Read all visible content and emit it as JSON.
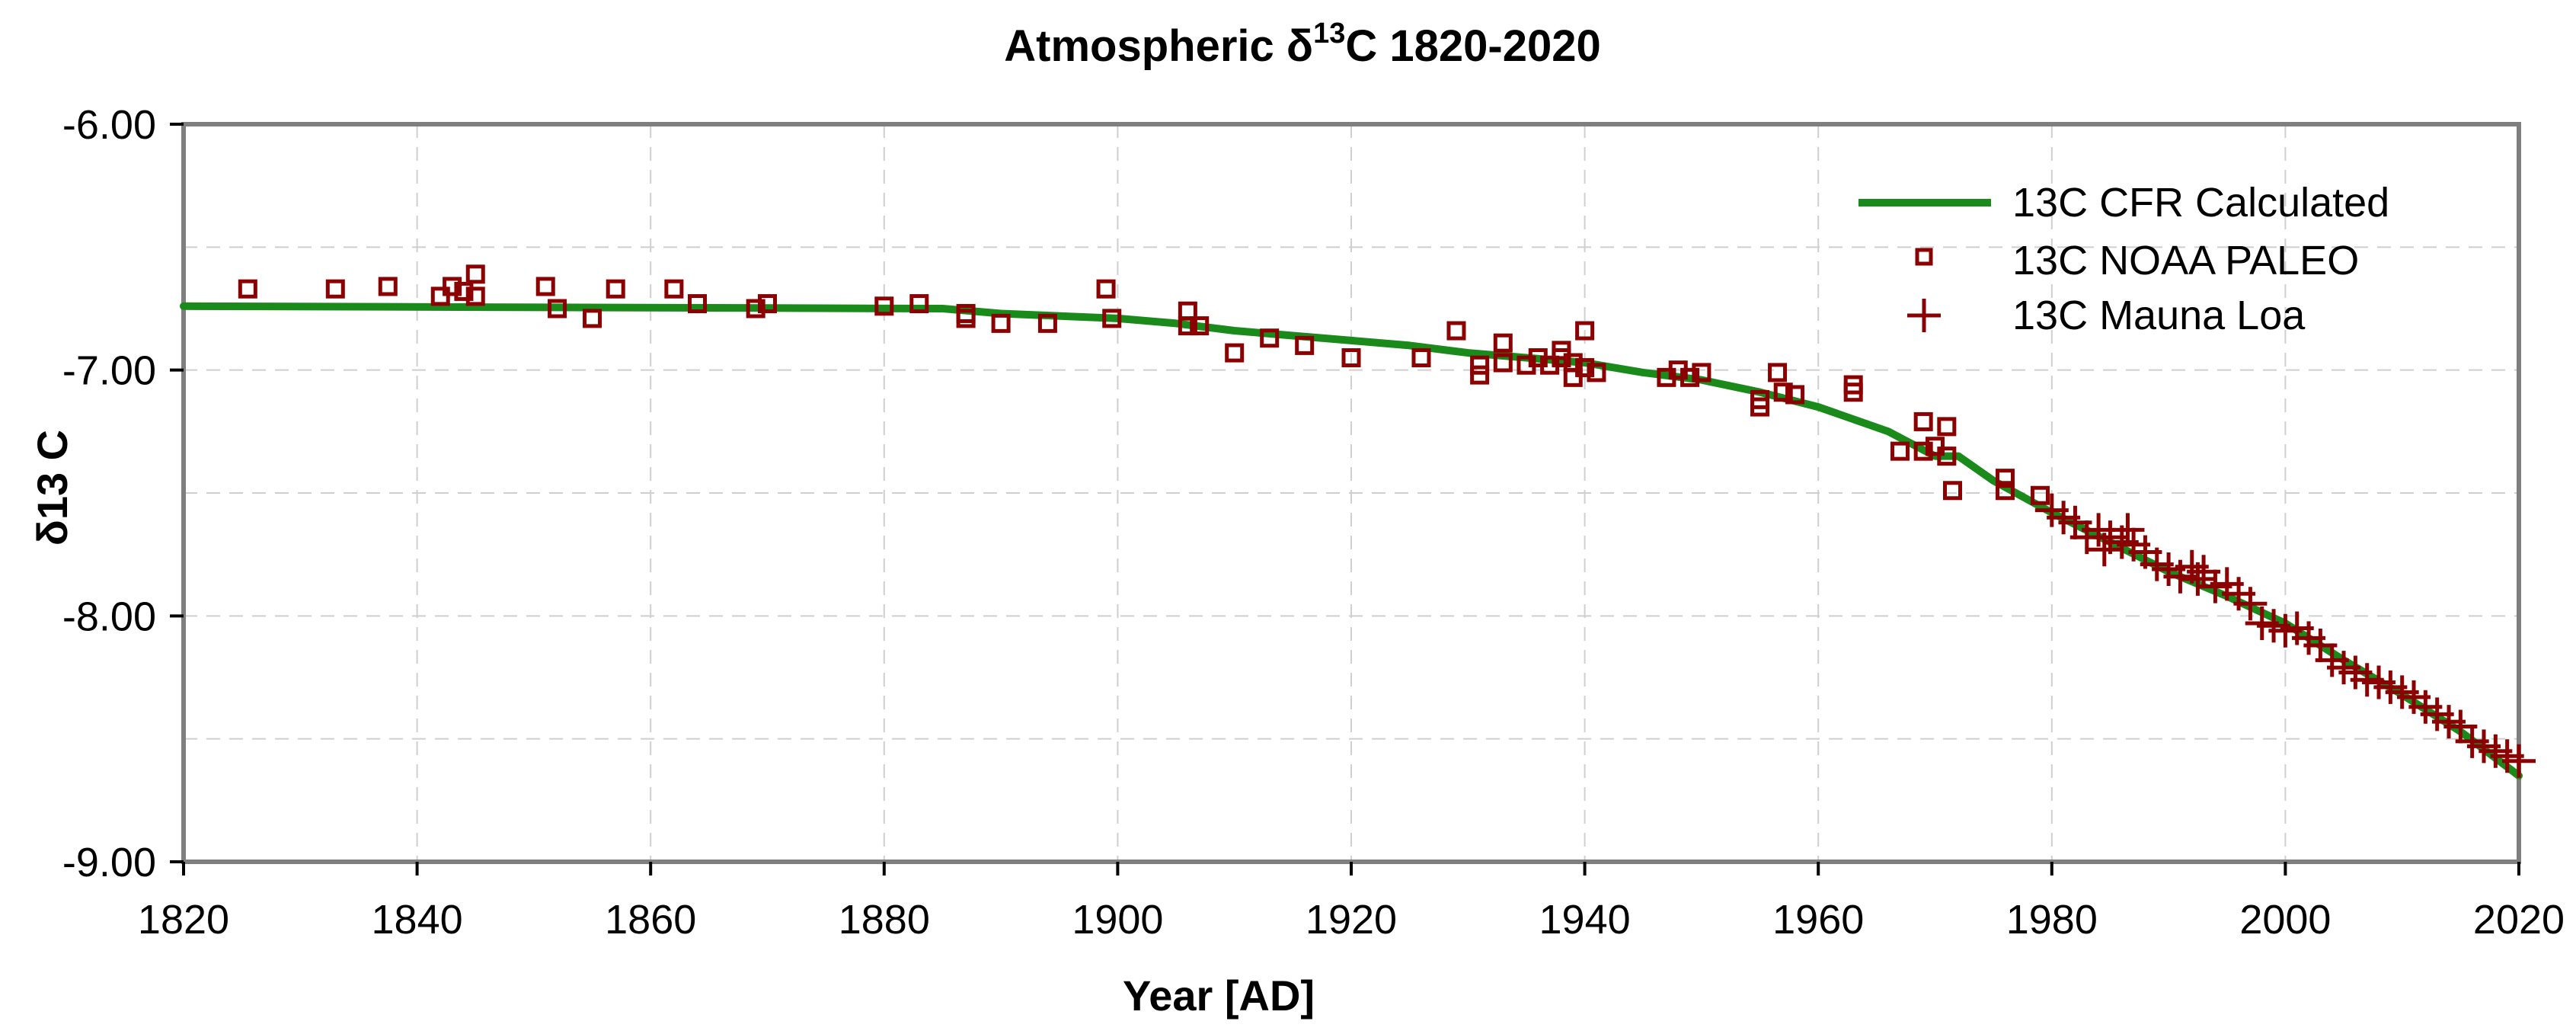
{
  "chart_data": {
    "type": "line",
    "title": "Atmospheric δ13C 1820-2020",
    "title_parts": {
      "prefix": "Atmospheric δ",
      "superscript": "13",
      "suffix": "C 1820-2020"
    },
    "xlabel": "Year [AD]",
    "ylabel": "δ13 C",
    "xlim": [
      1820,
      2020
    ],
    "ylim": [
      -9.0,
      -6.0
    ],
    "x_ticks": [
      1820,
      1840,
      1860,
      1880,
      1900,
      1920,
      1940,
      1960,
      1980,
      2000,
      2020
    ],
    "x_tick_labels": [
      "1820",
      "1840",
      "1860",
      "1880",
      "1900",
      "1920",
      "1940",
      "1960",
      "1980",
      "2000",
      "2020"
    ],
    "y_ticks": [
      -6.0,
      -7.0,
      -8.0,
      -9.0
    ],
    "y_tick_labels": [
      "-6.00",
      "-7.00",
      "-8.00",
      "-9.00"
    ],
    "y_grid": [
      -6.5,
      -7.0,
      -7.5,
      -8.0,
      -8.5
    ],
    "grid": true,
    "legend_position": "top-right",
    "colors": {
      "line": "#1a8a1a",
      "markers": "#8b0000",
      "axes": "#7f7f7f",
      "grid": "#cfcfcf"
    },
    "series": [
      {
        "name": "13C CFR Calculated",
        "kind": "line",
        "x": [
          1820,
          1885,
          1890,
          1900,
          1905,
          1910,
          1915,
          1920,
          1925,
          1930,
          1935,
          1940,
          1945,
          1950,
          1955,
          1960,
          1963,
          1966,
          1970,
          1972,
          1975,
          1980,
          1985,
          1990,
          1995,
          2000,
          2005,
          2010,
          2015,
          2020
        ],
        "y": [
          -6.74,
          -6.75,
          -6.77,
          -6.79,
          -6.81,
          -6.84,
          -6.86,
          -6.88,
          -6.9,
          -6.93,
          -6.95,
          -6.97,
          -7.01,
          -7.04,
          -7.09,
          -7.15,
          -7.2,
          -7.25,
          -7.35,
          -7.35,
          -7.45,
          -7.58,
          -7.7,
          -7.82,
          -7.92,
          -8.03,
          -8.18,
          -8.32,
          -8.47,
          -8.65
        ]
      },
      {
        "name": "13C NOAA PALEO",
        "kind": "square-marker",
        "points": [
          [
            1825.5,
            -6.67
          ],
          [
            1833,
            -6.67
          ],
          [
            1837.5,
            -6.66
          ],
          [
            1842,
            -6.7
          ],
          [
            1843,
            -6.66
          ],
          [
            1844,
            -6.68
          ],
          [
            1845,
            -6.61
          ],
          [
            1845,
            -6.7
          ],
          [
            1851,
            -6.66
          ],
          [
            1852,
            -6.75
          ],
          [
            1855,
            -6.79
          ],
          [
            1857,
            -6.67
          ],
          [
            1862,
            -6.67
          ],
          [
            1864,
            -6.73
          ],
          [
            1869,
            -6.75
          ],
          [
            1870,
            -6.73
          ],
          [
            1880,
            -6.74
          ],
          [
            1883,
            -6.73
          ],
          [
            1887,
            -6.77
          ],
          [
            1887,
            -6.79
          ],
          [
            1890,
            -6.81
          ],
          [
            1894,
            -6.81
          ],
          [
            1899,
            -6.67
          ],
          [
            1899.5,
            -6.79
          ],
          [
            1906,
            -6.76
          ],
          [
            1906,
            -6.82
          ],
          [
            1907,
            -6.82
          ],
          [
            1910,
            -6.93
          ],
          [
            1913,
            -6.87
          ],
          [
            1916,
            -6.9
          ],
          [
            1920,
            -6.95
          ],
          [
            1926,
            -6.95
          ],
          [
            1929,
            -6.84
          ],
          [
            1931,
            -6.98
          ],
          [
            1931,
            -7.02
          ],
          [
            1933,
            -6.89
          ],
          [
            1933,
            -6.97
          ],
          [
            1935,
            -6.98
          ],
          [
            1936,
            -6.95
          ],
          [
            1937,
            -6.98
          ],
          [
            1938,
            -6.92
          ],
          [
            1938,
            -6.95
          ],
          [
            1939,
            -6.97
          ],
          [
            1939,
            -7.03
          ],
          [
            1940,
            -6.84
          ],
          [
            1940,
            -6.99
          ],
          [
            1941,
            -7.01
          ],
          [
            1947,
            -7.03
          ],
          [
            1948,
            -7.0
          ],
          [
            1949,
            -7.03
          ],
          [
            1950,
            -7.01
          ],
          [
            1955,
            -7.12
          ],
          [
            1955,
            -7.15
          ],
          [
            1956.5,
            -7.01
          ],
          [
            1957,
            -7.09
          ],
          [
            1958,
            -7.1
          ],
          [
            1963,
            -7.06
          ],
          [
            1963,
            -7.09
          ],
          [
            1967,
            -7.33
          ],
          [
            1969,
            -7.21
          ],
          [
            1969,
            -7.33
          ],
          [
            1970,
            -7.31
          ],
          [
            1971,
            -7.23
          ],
          [
            1971,
            -7.35
          ],
          [
            1971.5,
            -7.49
          ],
          [
            1976,
            -7.44
          ],
          [
            1976,
            -7.49
          ],
          [
            1979,
            -7.51
          ]
        ]
      },
      {
        "name": "13C Mauna Loa",
        "kind": "plus-marker",
        "points": [
          [
            1980,
            -7.57
          ],
          [
            1981,
            -7.6
          ],
          [
            1982,
            -7.62
          ],
          [
            1983,
            -7.68
          ],
          [
            1984,
            -7.65
          ],
          [
            1984.5,
            -7.73
          ],
          [
            1985,
            -7.68
          ],
          [
            1986,
            -7.7
          ],
          [
            1986.5,
            -7.65
          ],
          [
            1987,
            -7.71
          ],
          [
            1988,
            -7.74
          ],
          [
            1989,
            -7.79
          ],
          [
            1990,
            -7.81
          ],
          [
            1991,
            -7.84
          ],
          [
            1992,
            -7.8
          ],
          [
            1992.5,
            -7.85
          ],
          [
            1993,
            -7.82
          ],
          [
            1994,
            -7.88
          ],
          [
            1995,
            -7.87
          ],
          [
            1996,
            -7.91
          ],
          [
            1997,
            -7.95
          ],
          [
            1998,
            -8.03
          ],
          [
            1999,
            -8.04
          ],
          [
            2000,
            -8.06
          ],
          [
            2001,
            -8.05
          ],
          [
            2002,
            -8.09
          ],
          [
            2003,
            -8.12
          ],
          [
            2004,
            -8.18
          ],
          [
            2005,
            -8.21
          ],
          [
            2006,
            -8.23
          ],
          [
            2007,
            -8.26
          ],
          [
            2008,
            -8.27
          ],
          [
            2009,
            -8.29
          ],
          [
            2010,
            -8.31
          ],
          [
            2011,
            -8.33
          ],
          [
            2012,
            -8.37
          ],
          [
            2013,
            -8.4
          ],
          [
            2014,
            -8.43
          ],
          [
            2015,
            -8.45
          ],
          [
            2016,
            -8.51
          ],
          [
            2017,
            -8.53
          ],
          [
            2018,
            -8.55
          ],
          [
            2019,
            -8.57
          ],
          [
            2020,
            -8.59
          ]
        ]
      }
    ]
  }
}
